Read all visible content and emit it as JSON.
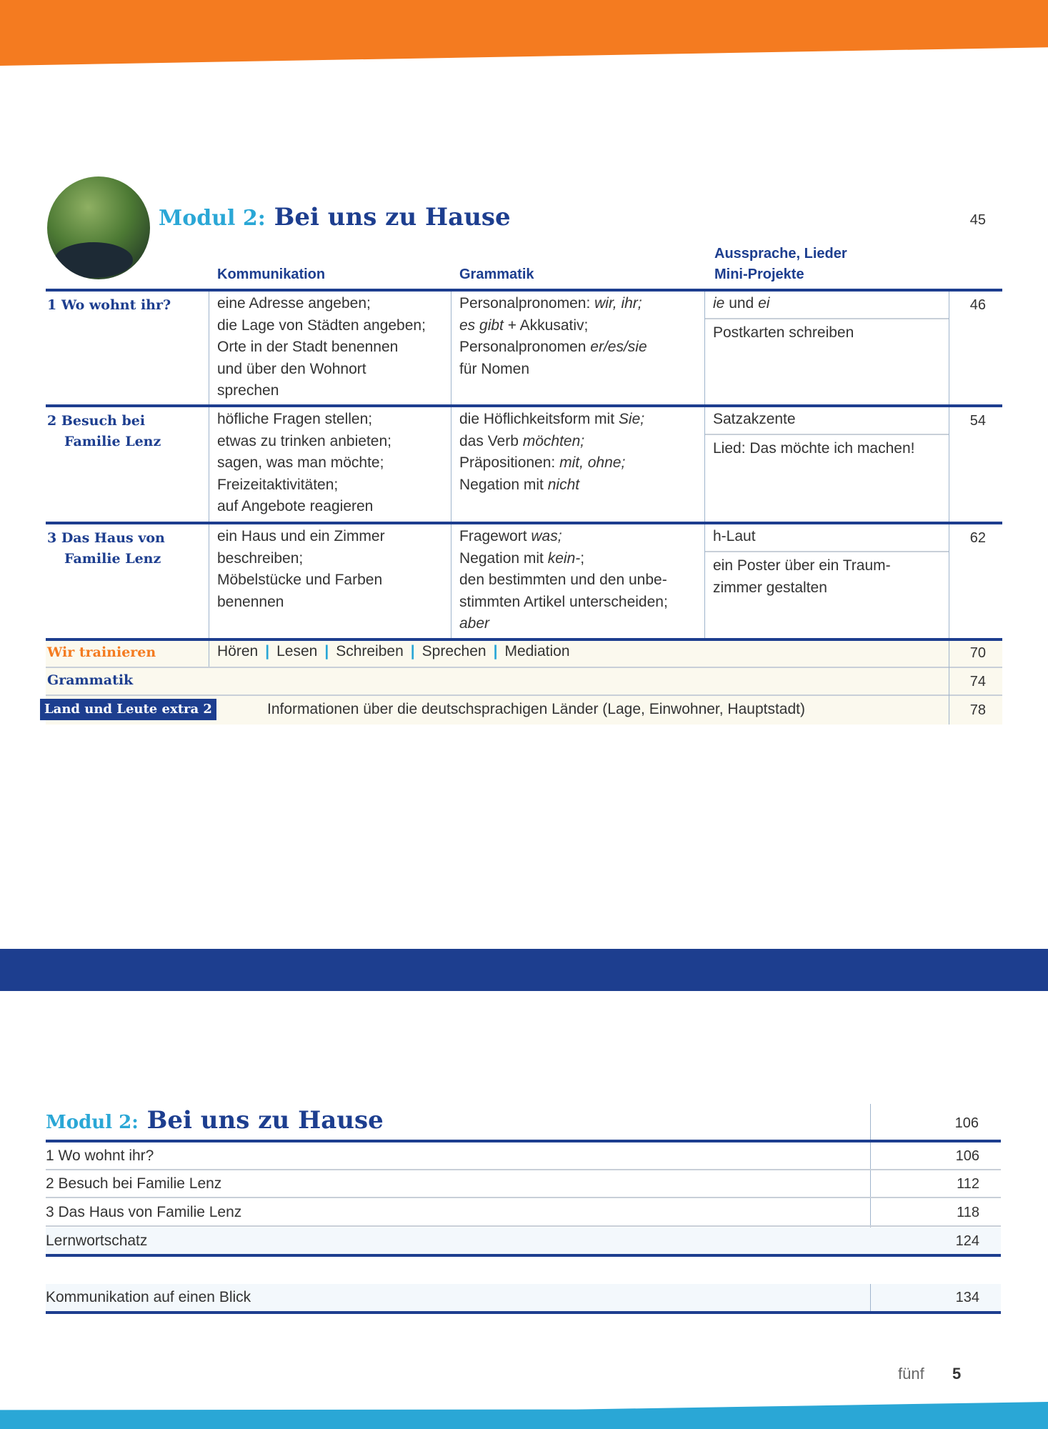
{
  "colors": {
    "orange": "#f47b20",
    "dark_blue": "#1d3e8f",
    "cyan": "#2aa7d6"
  },
  "top": {
    "module_label": "Modul 2:",
    "module_title": "Bei uns zu Hause",
    "module_page": "45",
    "headers": {
      "kommunikation": "Kommunikation",
      "grammatik": "Grammatik",
      "aussprache_line1": "Aussprache, Lieder",
      "aussprache_line2": "Mini-Projekte"
    },
    "rows": [
      {
        "title_lines": [
          "1 Wo wohnt ihr?"
        ],
        "page": "46",
        "kommunikation": [
          [
            {
              "t": "eine Adresse angeben;"
            }
          ],
          [
            {
              "t": "die Lage von Städten angeben;"
            }
          ],
          [
            {
              "t": "Orte in der Stadt benennen"
            }
          ],
          [
            {
              "t": "und über den Wohnort"
            }
          ],
          [
            {
              "t": "sprechen"
            }
          ]
        ],
        "grammatik": [
          [
            {
              "t": "Personalpronomen: "
            },
            {
              "t": "wir, ihr;",
              "i": true
            }
          ],
          [
            {
              "t": "es gibt",
              "i": true
            },
            {
              "t": " + Akkusativ;"
            }
          ],
          [
            {
              "t": "Personalpronomen "
            },
            {
              "t": "er/es/sie",
              "i": true
            }
          ],
          [
            {
              "t": "für Nomen"
            }
          ]
        ],
        "aussprache": [
          [
            {
              "t": "ie",
              "i": true
            },
            {
              "t": " und "
            },
            {
              "t": "ei",
              "i": true
            }
          ]
        ],
        "projekt": [
          [
            {
              "t": "Postkarten schreiben"
            }
          ]
        ]
      },
      {
        "title_lines": [
          "2 Besuch bei",
          "Familie Lenz"
        ],
        "page": "54",
        "kommunikation": [
          [
            {
              "t": "höfliche Fragen stellen;"
            }
          ],
          [
            {
              "t": "etwas zu trinken anbieten;"
            }
          ],
          [
            {
              "t": "sagen, was man möchte;"
            }
          ],
          [
            {
              "t": "Freizeitaktivitäten;"
            }
          ],
          [
            {
              "t": "auf Angebote reagieren"
            }
          ]
        ],
        "grammatik": [
          [
            {
              "t": "die Höflichkeitsform mit "
            },
            {
              "t": "Sie;",
              "i": true
            }
          ],
          [
            {
              "t": "das Verb "
            },
            {
              "t": "möchten;",
              "i": true
            }
          ],
          [
            {
              "t": "Präpositionen: "
            },
            {
              "t": "mit, ohne;",
              "i": true
            }
          ],
          [
            {
              "t": "Negation mit "
            },
            {
              "t": "nicht",
              "i": true
            }
          ]
        ],
        "aussprache": [
          [
            {
              "t": "Satzakzente"
            }
          ]
        ],
        "projekt": [
          [
            {
              "t": "Lied: Das möchte ich machen!"
            }
          ]
        ]
      },
      {
        "title_lines": [
          "3 Das Haus von",
          "Familie Lenz"
        ],
        "page": "62",
        "kommunikation": [
          [
            {
              "t": "ein Haus und ein Zimmer"
            }
          ],
          [
            {
              "t": "beschreiben;"
            }
          ],
          [
            {
              "t": "Möbelstücke und Farben"
            }
          ],
          [
            {
              "t": "benennen"
            }
          ]
        ],
        "grammatik": [
          [
            {
              "t": "Fragewort "
            },
            {
              "t": "was;",
              "i": true
            }
          ],
          [
            {
              "t": "Negation mit "
            },
            {
              "t": "kein-",
              "i": true
            },
            {
              "t": ";"
            }
          ],
          [
            {
              "t": "den bestimmten und den unbe-"
            }
          ],
          [
            {
              "t": "stimmten Artikel unterscheiden;"
            }
          ],
          [
            {
              "t": "aber",
              "i": true
            }
          ]
        ],
        "aussprache": [
          [
            {
              "t": "h-Laut"
            }
          ]
        ],
        "projekt": [
          [
            {
              "t": "ein Poster über ein Traum-"
            }
          ],
          [
            {
              "t": "zimmer gestalten"
            }
          ]
        ]
      }
    ],
    "training": {
      "label": "Wir trainieren",
      "skills": [
        "Hören",
        "Lesen",
        "Schreiben",
        "Sprechen",
        "Mediation"
      ],
      "page": "70"
    },
    "grammatik": {
      "label": "Grammatik",
      "page": "74"
    },
    "land": {
      "badge": "Land und Leute extra 2",
      "text": "Informationen über die deutschsprachigen Länder (Lage, Einwohner, Hauptstadt)",
      "page": "78"
    }
  },
  "bottom": {
    "module_label": "Modul 2:",
    "module_title": "Bei uns zu Hause",
    "module_page": "106",
    "rows": [
      {
        "label": "1  Wo wohnt ihr?",
        "page": "106"
      },
      {
        "label": "2  Besuch bei Familie Lenz",
        "page": "112"
      },
      {
        "label": "3  Das Haus von Familie Lenz",
        "page": "118"
      },
      {
        "label": "Lernwortschatz",
        "page": "124"
      }
    ],
    "extra": {
      "label": "Kommunikation auf einen Blick",
      "page": "134"
    }
  },
  "footer": {
    "word": "fünf",
    "number": "5"
  }
}
